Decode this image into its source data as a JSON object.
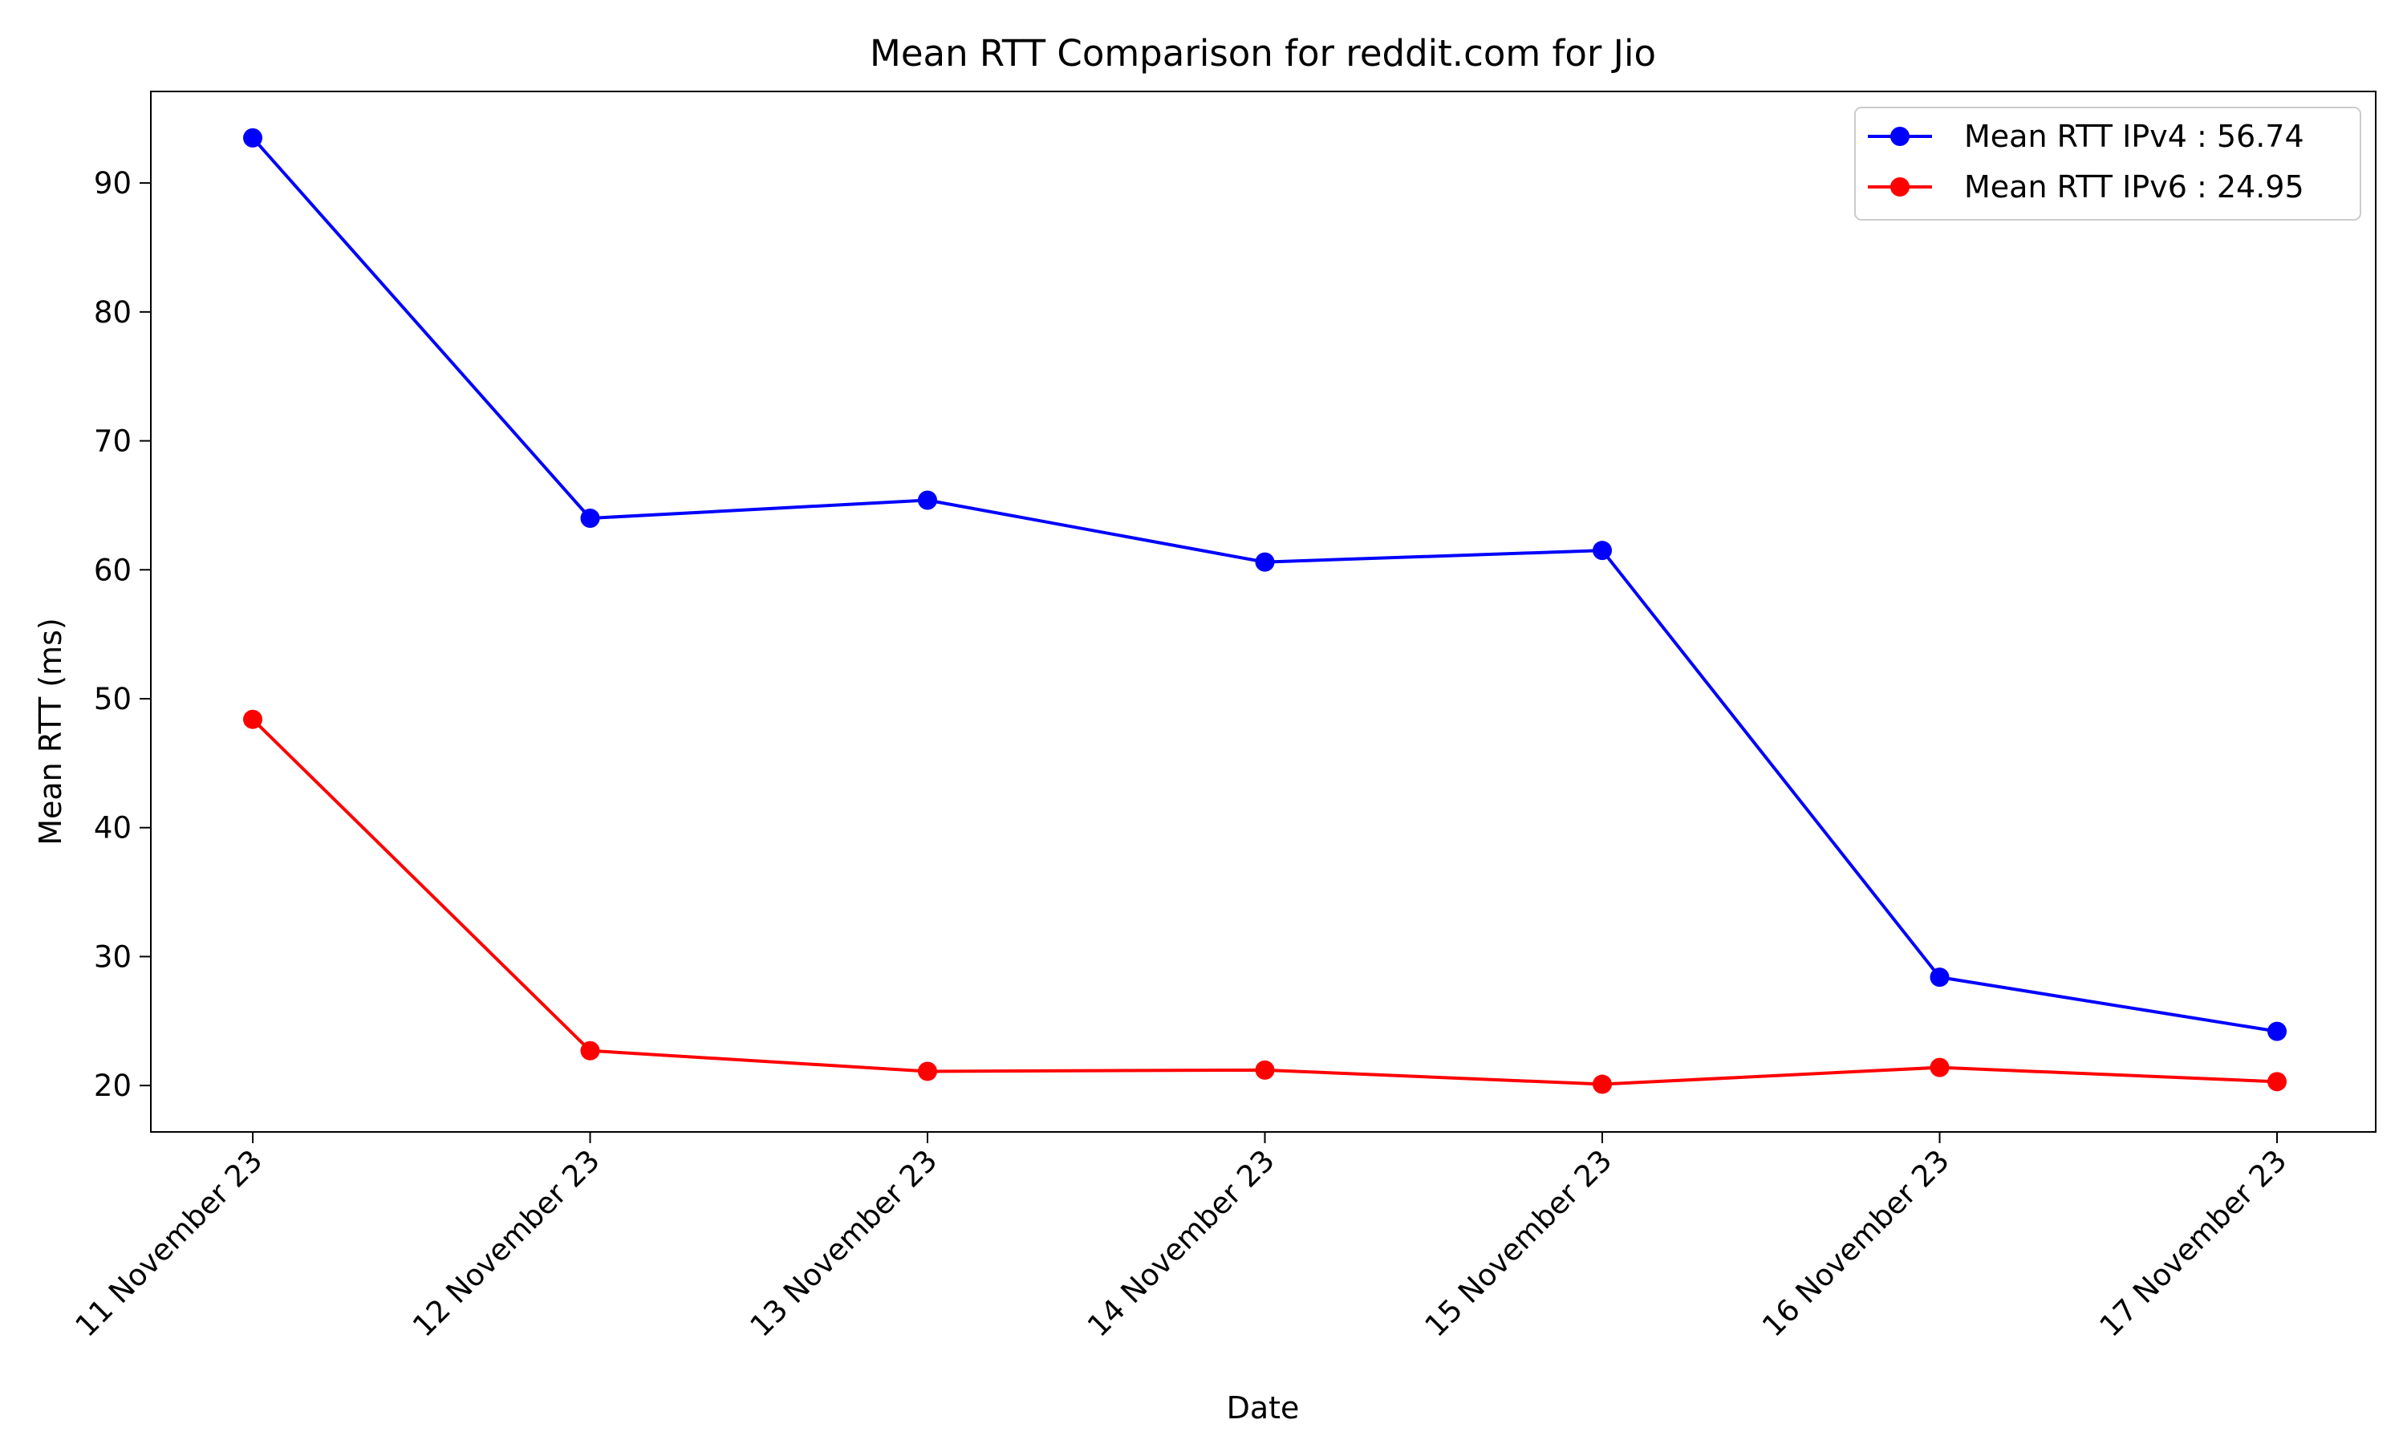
{
  "chart_data": {
    "type": "line",
    "title": "Mean RTT Comparison for reddit.com for Jio",
    "xlabel": "Date",
    "ylabel": "Mean RTT (ms)",
    "categories": [
      "11 November 23",
      "12 November 23",
      "13 November 23",
      "14 November 23",
      "15 November 23",
      "16 November 23",
      "17 November 23"
    ],
    "ylim": [
      16.4,
      97.1
    ],
    "yticks": [
      20,
      30,
      40,
      50,
      60,
      70,
      80,
      90
    ],
    "grid": false,
    "legend_position": "top-right",
    "series": [
      {
        "name": "Mean RTT IPv4 : 56.74",
        "color": "#0000ff",
        "values": [
          93.5,
          64.0,
          65.4,
          60.6,
          61.5,
          28.4,
          24.2
        ]
      },
      {
        "name": "Mean RTT IPv6 : 24.95",
        "color": "#ff0000",
        "values": [
          48.4,
          22.7,
          21.1,
          21.2,
          20.1,
          21.4,
          20.3
        ]
      }
    ]
  }
}
